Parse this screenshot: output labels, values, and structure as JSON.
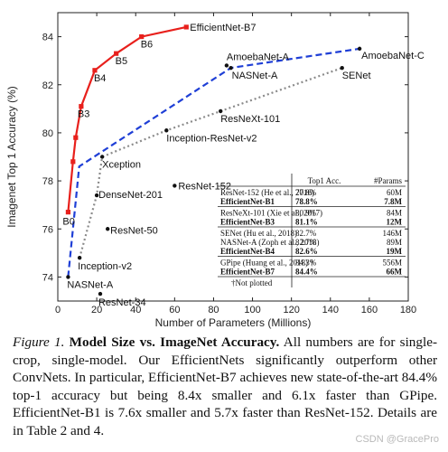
{
  "chart_data": {
    "type": "scatter",
    "xlabel": "Number of Parameters (Millions)",
    "ylabel": "Imagenet Top 1 Accuracy (%)",
    "xlim": [
      0,
      180
    ],
    "ylim": [
      73,
      85
    ],
    "xticks": [
      0,
      20,
      40,
      60,
      80,
      100,
      120,
      140,
      160,
      180
    ],
    "yticks": [
      74,
      76,
      78,
      80,
      82,
      84
    ],
    "grid": false,
    "efficientnet": {
      "color": "#e8201c",
      "points": [
        {
          "label": "B0",
          "x": 5.3,
          "y": 76.7
        },
        {
          "label": "",
          "x": 7.8,
          "y": 78.8
        },
        {
          "label": "",
          "x": 9.2,
          "y": 79.8
        },
        {
          "label": "B3",
          "x": 12,
          "y": 81.1
        },
        {
          "label": "B4",
          "x": 19,
          "y": 82.6
        },
        {
          "label": "B5",
          "x": 30,
          "y": 83.3
        },
        {
          "label": "B6",
          "x": 43,
          "y": 84.0
        },
        {
          "label": "EfficientNet-B7",
          "x": 66,
          "y": 84.4
        }
      ]
    },
    "nas_line": {
      "color": "#1f3fd6",
      "points": [
        {
          "x": 5.3,
          "y": 74.0
        },
        {
          "x": 11,
          "y": 78.6
        },
        {
          "x": 88.9,
          "y": 82.7
        },
        {
          "x": 155,
          "y": 83.5
        }
      ]
    },
    "manual_line": {
      "color": "#8a8a8a",
      "points": [
        {
          "x": 11.2,
          "y": 74.8
        },
        {
          "x": 20,
          "y": 77.4
        },
        {
          "x": 22.8,
          "y": 79.0
        },
        {
          "x": 55.8,
          "y": 80.1
        },
        {
          "x": 83.6,
          "y": 80.9
        },
        {
          "x": 146,
          "y": 82.7
        }
      ]
    },
    "baselines": [
      {
        "label": "NASNet-A",
        "x": 5.3,
        "y": 74.0
      },
      {
        "label": "ResNet-34",
        "x": 21.8,
        "y": 73.3
      },
      {
        "label": "Inception-v2",
        "x": 11.2,
        "y": 74.8
      },
      {
        "label": "ResNet-50",
        "x": 25.6,
        "y": 76.0
      },
      {
        "label": "DenseNet-201",
        "x": 20,
        "y": 77.4
      },
      {
        "label": "Xception",
        "x": 22.8,
        "y": 79.0
      },
      {
        "label": "ResNet-152",
        "x": 60,
        "y": 77.8
      },
      {
        "label": "Inception-ResNet-v2",
        "x": 55.8,
        "y": 80.1
      },
      {
        "label": "ResNeXt-101",
        "x": 83.6,
        "y": 80.9
      },
      {
        "label": "SENet",
        "x": 146,
        "y": 82.7
      },
      {
        "label": "NASNet-A",
        "x": 88.9,
        "y": 82.7
      },
      {
        "label": "AmoebaNet-A",
        "x": 86.7,
        "y": 82.8
      },
      {
        "label": "AmoebaNet-C",
        "x": 155,
        "y": 83.5
      }
    ],
    "table": {
      "headers": [
        "",
        "Top1 Acc.",
        "#Params"
      ],
      "groups": [
        [
          {
            "model": "ResNet-152 (He et al., 2016)",
            "acc": "77.8%",
            "params": "60M",
            "bold": false
          },
          {
            "model": "EfficientNet-B1",
            "acc": "78.8%",
            "params": "7.8M",
            "bold": true
          }
        ],
        [
          {
            "model": "ResNeXt-101 (Xie et al., 2017)",
            "acc": "80.9%",
            "params": "84M",
            "bold": false
          },
          {
            "model": "EfficientNet-B3",
            "acc": "81.1%",
            "params": "12M",
            "bold": true
          }
        ],
        [
          {
            "model": "SENet (Hu et al., 2018)",
            "acc": "82.7%",
            "params": "146M",
            "bold": false
          },
          {
            "model": "NASNet-A (Zoph et al., 2018)",
            "acc": "82.7%",
            "params": "89M",
            "bold": false
          },
          {
            "model": "EfficientNet-B4",
            "acc": "82.6%",
            "params": "19M",
            "bold": true
          }
        ],
        [
          {
            "model": "GPipe (Huang et al., 2018) †",
            "acc": "84.3%",
            "params": "556M",
            "bold": false
          },
          {
            "model": "EfficientNet-B7",
            "acc": "84.4%",
            "params": "66M",
            "bold": true
          }
        ]
      ],
      "footnote": "†Not plotted"
    }
  },
  "caption": {
    "figure_label": "Figure 1.",
    "title": "Model Size vs. ImageNet Accuracy.",
    "body": "All numbers are for single-crop, single-model. Our EfficientNets significantly outperform other ConvNets. In particular, EfficientNet-B7 achieves new state-of-the-art 84.4% top-1 accuracy but being 8.4x smaller and 6.1x faster than GPipe. EfficientNet-B1 is 7.6x smaller and 5.7x faster than ResNet-152. Details are in Table 2 and 4."
  },
  "watermark": "CSDN @GracePro"
}
